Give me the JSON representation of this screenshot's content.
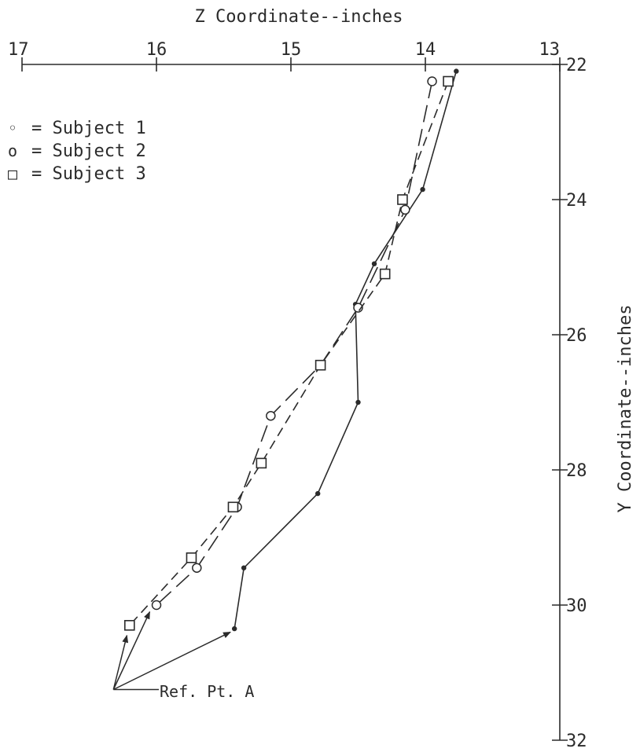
{
  "chart_data": {
    "type": "line",
    "title": "",
    "xlabel": "Z Coordinate--inches",
    "ylabel": "Y Coordinate--inches",
    "xlim": [
      17,
      13
    ],
    "ylim": [
      22,
      32
    ],
    "x_ticks": [
      "17",
      "16",
      "15",
      "14",
      "13"
    ],
    "y_ticks": [
      "22",
      "24",
      "26",
      "28",
      "30",
      "32"
    ],
    "grid": false,
    "legend": {
      "placement": "top-left",
      "entries": [
        {
          "symbol": "◦",
          "label": "= Subject 1"
        },
        {
          "symbol": "o",
          "label": "= Subject 2"
        },
        {
          "symbol": "□",
          "label": "= Subject 3"
        }
      ]
    },
    "series": [
      {
        "name": "Subject 1",
        "marker": "dot",
        "dash": "solid",
        "points": [
          [
            13.77,
            22.1
          ],
          [
            14.02,
            23.85
          ],
          [
            14.38,
            24.95
          ],
          [
            14.52,
            25.55
          ],
          [
            14.5,
            27.0
          ],
          [
            14.8,
            28.35
          ],
          [
            15.35,
            29.45
          ],
          [
            15.42,
            30.35
          ]
        ]
      },
      {
        "name": "Subject 2",
        "marker": "circle",
        "dash": "long",
        "points": [
          [
            13.95,
            22.25
          ],
          [
            14.15,
            24.15
          ],
          [
            14.5,
            25.6
          ],
          [
            14.78,
            26.45
          ],
          [
            15.15,
            27.2
          ],
          [
            15.4,
            28.55
          ],
          [
            15.7,
            29.45
          ],
          [
            16.0,
            30.0
          ]
        ]
      },
      {
        "name": "Subject 3",
        "marker": "square",
        "dash": "short",
        "points": [
          [
            13.83,
            22.25
          ],
          [
            14.17,
            24.0
          ],
          [
            14.3,
            25.1
          ],
          [
            14.78,
            26.45
          ],
          [
            15.22,
            27.9
          ],
          [
            15.43,
            28.55
          ],
          [
            15.74,
            29.3
          ],
          [
            16.2,
            30.3
          ]
        ]
      }
    ],
    "annotation": {
      "text": "Ref. Pt. A",
      "origin": [
        16.32,
        31.25
      ],
      "arrow_targets": [
        [
          16.22,
          30.45
        ],
        [
          16.05,
          30.1
        ],
        [
          15.45,
          30.4
        ]
      ]
    }
  }
}
